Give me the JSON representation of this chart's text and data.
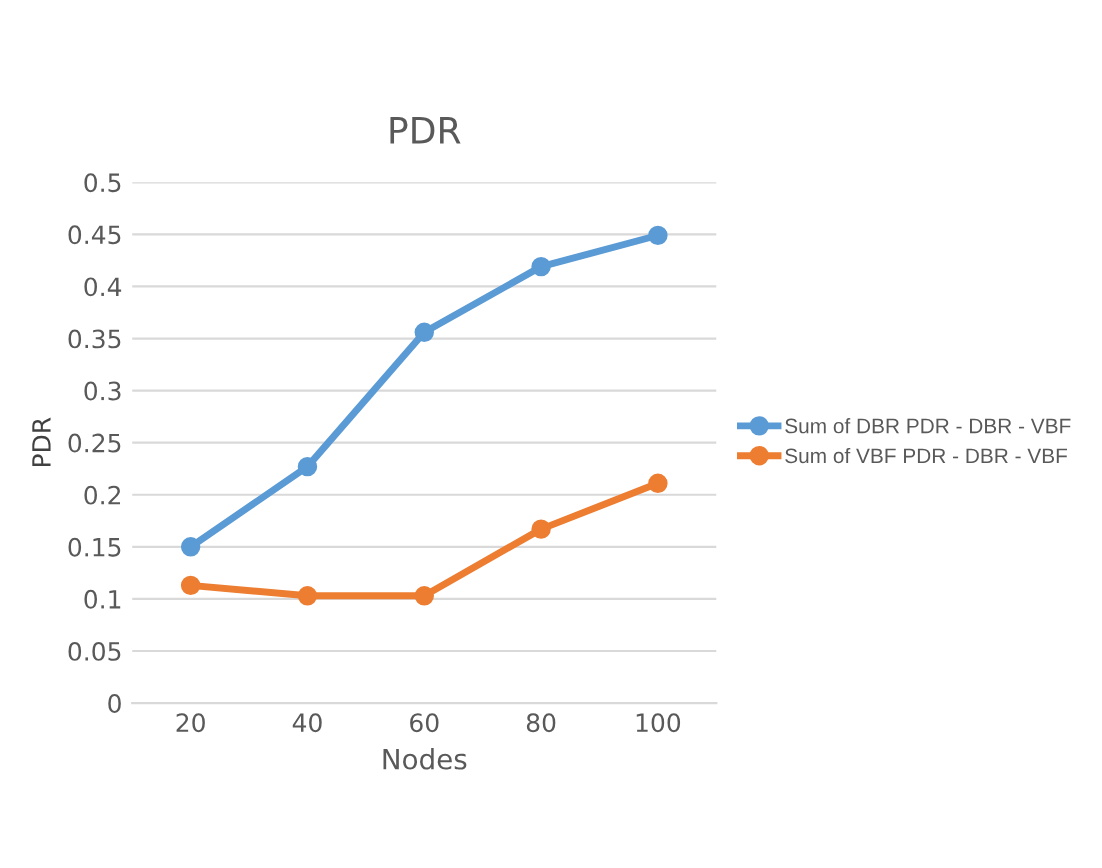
{
  "chart_data": {
    "type": "line",
    "title": "PDR",
    "xlabel": "Nodes",
    "ylabel": "PDR",
    "categories": [
      "20",
      "40",
      "60",
      "80",
      "100"
    ],
    "series": [
      {
        "name": "Sum of DBR PDR - DBR - VBF",
        "color": "#5b9bd5",
        "values": [
          0.15,
          0.227,
          0.356,
          0.419,
          0.449
        ]
      },
      {
        "name": "Sum of VBF PDR - DBR - VBF",
        "color": "#ed7d31",
        "values": [
          0.113,
          0.103,
          0.103,
          0.167,
          0.211
        ]
      }
    ],
    "ylim": [
      0,
      0.5
    ],
    "yticks": [
      0,
      0.05,
      0.1,
      0.15,
      0.2,
      0.25,
      0.3,
      0.35,
      0.4,
      0.45,
      0.5
    ],
    "grid": "y",
    "legend": "right",
    "marker": "circle",
    "line_style": "solid"
  }
}
